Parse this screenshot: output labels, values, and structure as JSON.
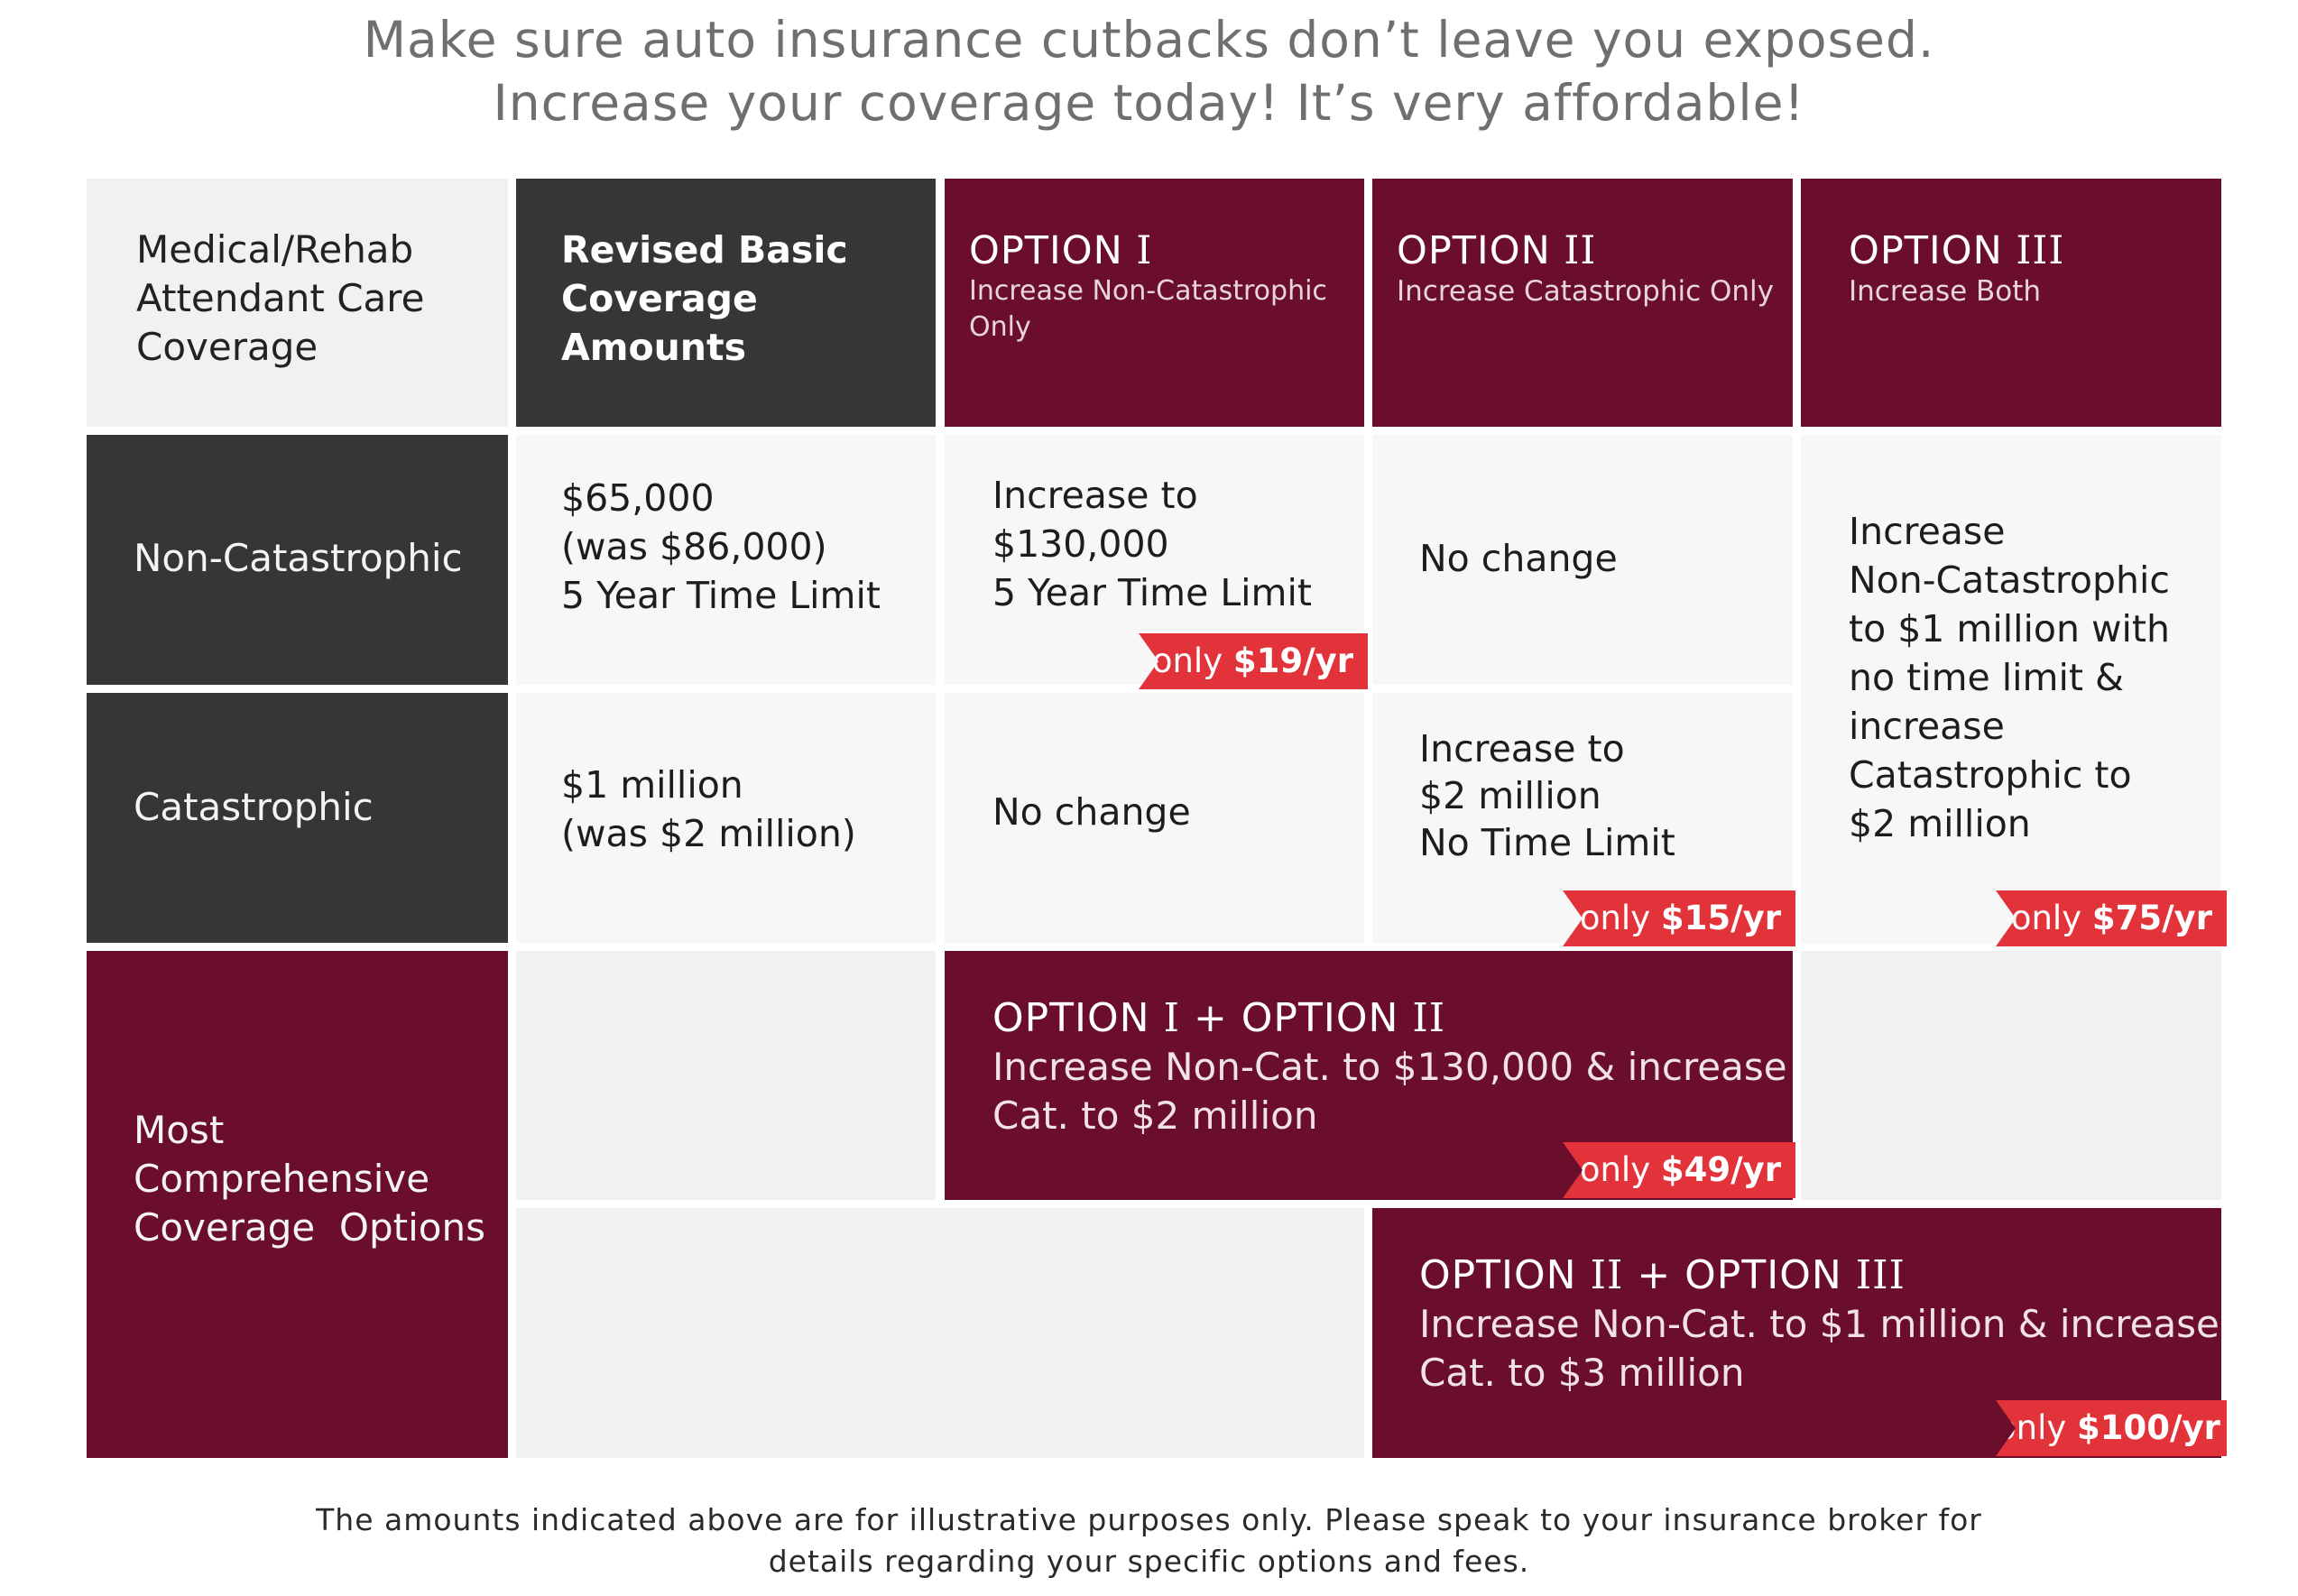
{
  "header": {
    "line1": "Make sure auto insurance cutbacks don’t leave you exposed.",
    "line2": "Increase your coverage today! It’s very affordable!"
  },
  "table": {
    "corner": [
      "Medical/Rehab",
      "Attendant Care",
      "Coverage"
    ],
    "basic_head": [
      "Revised Basic",
      "Coverage Amounts"
    ],
    "options": [
      {
        "prefix": "OPTION ",
        "numeral": "I",
        "sub": "Increase Non-Catastrophic Only"
      },
      {
        "prefix": "OPTION ",
        "numeral": "II",
        "sub": "Increase Catastrophic Only"
      },
      {
        "prefix": "OPTION ",
        "numeral": "III",
        "sub": "Increase Both"
      }
    ],
    "rows": {
      "noncat": "Non-Catastrophic",
      "cat": "Catastrophic",
      "comprehensive": [
        "Most",
        "Comprehensive",
        "Coverage  Options"
      ]
    },
    "cells": {
      "basic_noncat": [
        "$65,000",
        "(was $86,000)",
        "5 Year Time Limit"
      ],
      "opt1_noncat": [
        "Increase to",
        "$130,000",
        "5 Year Time Limit"
      ],
      "opt2_noncat": "No change",
      "opt3_both": [
        "Increase",
        "Non-Catastrophic",
        "to $1 million with",
        "no time limit &",
        "increase",
        "Catastrophic to",
        "$2 million"
      ],
      "basic_cat": [
        "$1 million",
        "(was $2 million)"
      ],
      "opt1_cat": "No change",
      "opt2_cat": [
        "Increase to",
        "$2 million",
        "No Time Limit"
      ]
    },
    "combos": [
      {
        "part1": "OPTION ",
        "num1": "I",
        "plus": " + OPTION ",
        "num2": "II",
        "text": [
          "Increase Non-Cat. to $130,000 & increase",
          "Cat. to $2 million"
        ]
      },
      {
        "part1": "OPTION ",
        "num1": "II",
        "plus": " + OPTION ",
        "num2": "III",
        "text": [
          "Increase Non-Cat. to $1 million & increase",
          "Cat. to $3 million"
        ]
      }
    ],
    "prices": [
      {
        "prefix": "only ",
        "amount": "$19/yr"
      },
      {
        "prefix": "only ",
        "amount": "$15/yr"
      },
      {
        "prefix": "only ",
        "amount": "$75/yr"
      },
      {
        "prefix": "only ",
        "amount": "$49/yr"
      },
      {
        "prefix": "only ",
        "amount": "$100/yr"
      }
    ]
  },
  "footnote": [
    "The amounts indicated above are for illustrative purposes only. Please speak to your insurance broker for",
    "details regarding your specific options and fees."
  ],
  "colors": {
    "maroon": "#6a0e2b",
    "charcoal": "#363636",
    "price_red": "#e2323a",
    "light_gray": "#f1f1f1"
  }
}
